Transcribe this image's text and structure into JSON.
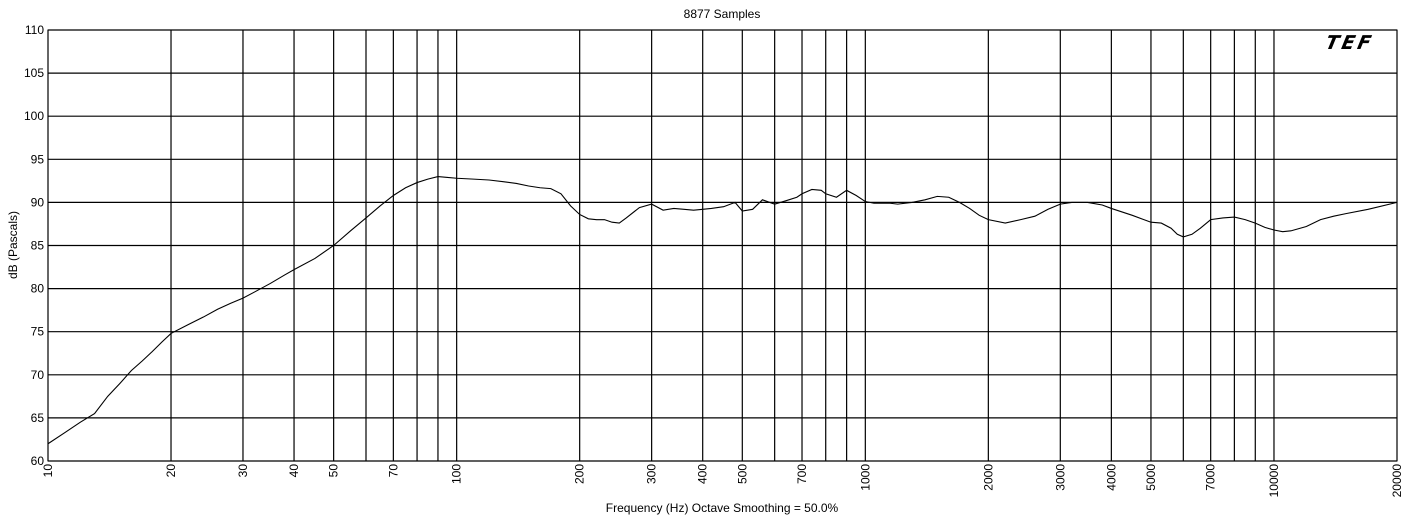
{
  "chart_data": {
    "type": "line",
    "title": "8877 Samples",
    "xlabel": "Frequency (Hz) Octave Smoothing = 50.0%",
    "ylabel": "dB (Pascals)",
    "x_scale": "log",
    "xlim": [
      10,
      20000
    ],
    "ylim": [
      60,
      110
    ],
    "grid": true,
    "logo_text": "TEF",
    "line_color": "#000000",
    "x_tick_labels": [
      "10",
      "20",
      "30",
      "40",
      "50",
      "70",
      "100",
      "200",
      "300",
      "400",
      "500",
      "700",
      "1000",
      "2000",
      "3000",
      "4000",
      "5000",
      "7000",
      "10000",
      "20000"
    ],
    "x_ticks": [
      10,
      20,
      30,
      40,
      50,
      70,
      100,
      200,
      300,
      400,
      500,
      700,
      1000,
      2000,
      3000,
      4000,
      5000,
      7000,
      10000,
      20000
    ],
    "x_minor_grid": [
      60,
      80,
      90,
      600,
      800,
      900,
      6000,
      8000,
      9000
    ],
    "y_ticks": [
      60,
      65,
      70,
      75,
      80,
      85,
      90,
      95,
      100,
      105,
      110
    ],
    "series": [
      {
        "x": [
          10,
          11,
          12,
          13,
          14,
          15,
          16,
          17,
          18,
          19,
          20,
          22,
          24,
          26,
          28,
          30,
          32,
          35,
          38,
          40,
          45,
          50,
          55,
          60,
          65,
          70,
          75,
          80,
          85,
          90,
          95,
          100,
          110,
          120,
          130,
          140,
          150,
          160,
          170,
          180,
          190,
          200,
          210,
          220,
          230,
          240,
          250,
          260,
          280,
          300,
          320,
          340,
          360,
          380,
          400,
          420,
          450,
          480,
          500,
          530,
          560,
          600,
          640,
          680,
          700,
          740,
          780,
          800,
          850,
          900,
          950,
          1000,
          1050,
          1100,
          1150,
          1200,
          1300,
          1400,
          1500,
          1600,
          1700,
          1800,
          1900,
          2000,
          2200,
          2400,
          2600,
          2800,
          3000,
          3200,
          3500,
          3800,
          4000,
          4500,
          5000,
          5300,
          5600,
          5800,
          6000,
          6300,
          6600,
          7000,
          7500,
          8000,
          8500,
          9000,
          9500,
          10000,
          10500,
          11000,
          12000,
          13000,
          14000,
          15000,
          17000,
          20000
        ],
        "values": [
          62.0,
          63.3,
          64.5,
          65.5,
          67.5,
          69.0,
          70.5,
          71.6,
          72.7,
          73.8,
          74.8,
          75.8,
          76.7,
          77.6,
          78.3,
          78.9,
          79.6,
          80.6,
          81.6,
          82.2,
          83.5,
          85.0,
          86.7,
          88.2,
          89.6,
          90.8,
          91.7,
          92.3,
          92.7,
          93.0,
          92.9,
          92.8,
          92.7,
          92.6,
          92.4,
          92.2,
          91.9,
          91.7,
          91.6,
          91.0,
          89.6,
          88.6,
          88.1,
          88.0,
          88.0,
          87.7,
          87.6,
          88.2,
          89.4,
          89.8,
          89.1,
          89.3,
          89.2,
          89.1,
          89.2,
          89.3,
          89.5,
          90.0,
          89.0,
          89.2,
          90.3,
          89.8,
          90.2,
          90.6,
          91.0,
          91.5,
          91.4,
          91.0,
          90.6,
          91.4,
          90.8,
          90.1,
          89.9,
          89.9,
          89.9,
          89.8,
          90.0,
          90.3,
          90.7,
          90.6,
          90.0,
          89.3,
          88.5,
          88.0,
          87.6,
          88.0,
          88.4,
          89.2,
          89.8,
          90.0,
          90.0,
          89.7,
          89.3,
          88.5,
          87.7,
          87.6,
          87.0,
          86.3,
          86.0,
          86.3,
          87.0,
          88.0,
          88.2,
          88.3,
          88.0,
          87.6,
          87.1,
          86.8,
          86.6,
          86.7,
          87.2,
          88.0,
          88.4,
          88.7,
          89.2,
          90.0
        ]
      }
    ]
  }
}
